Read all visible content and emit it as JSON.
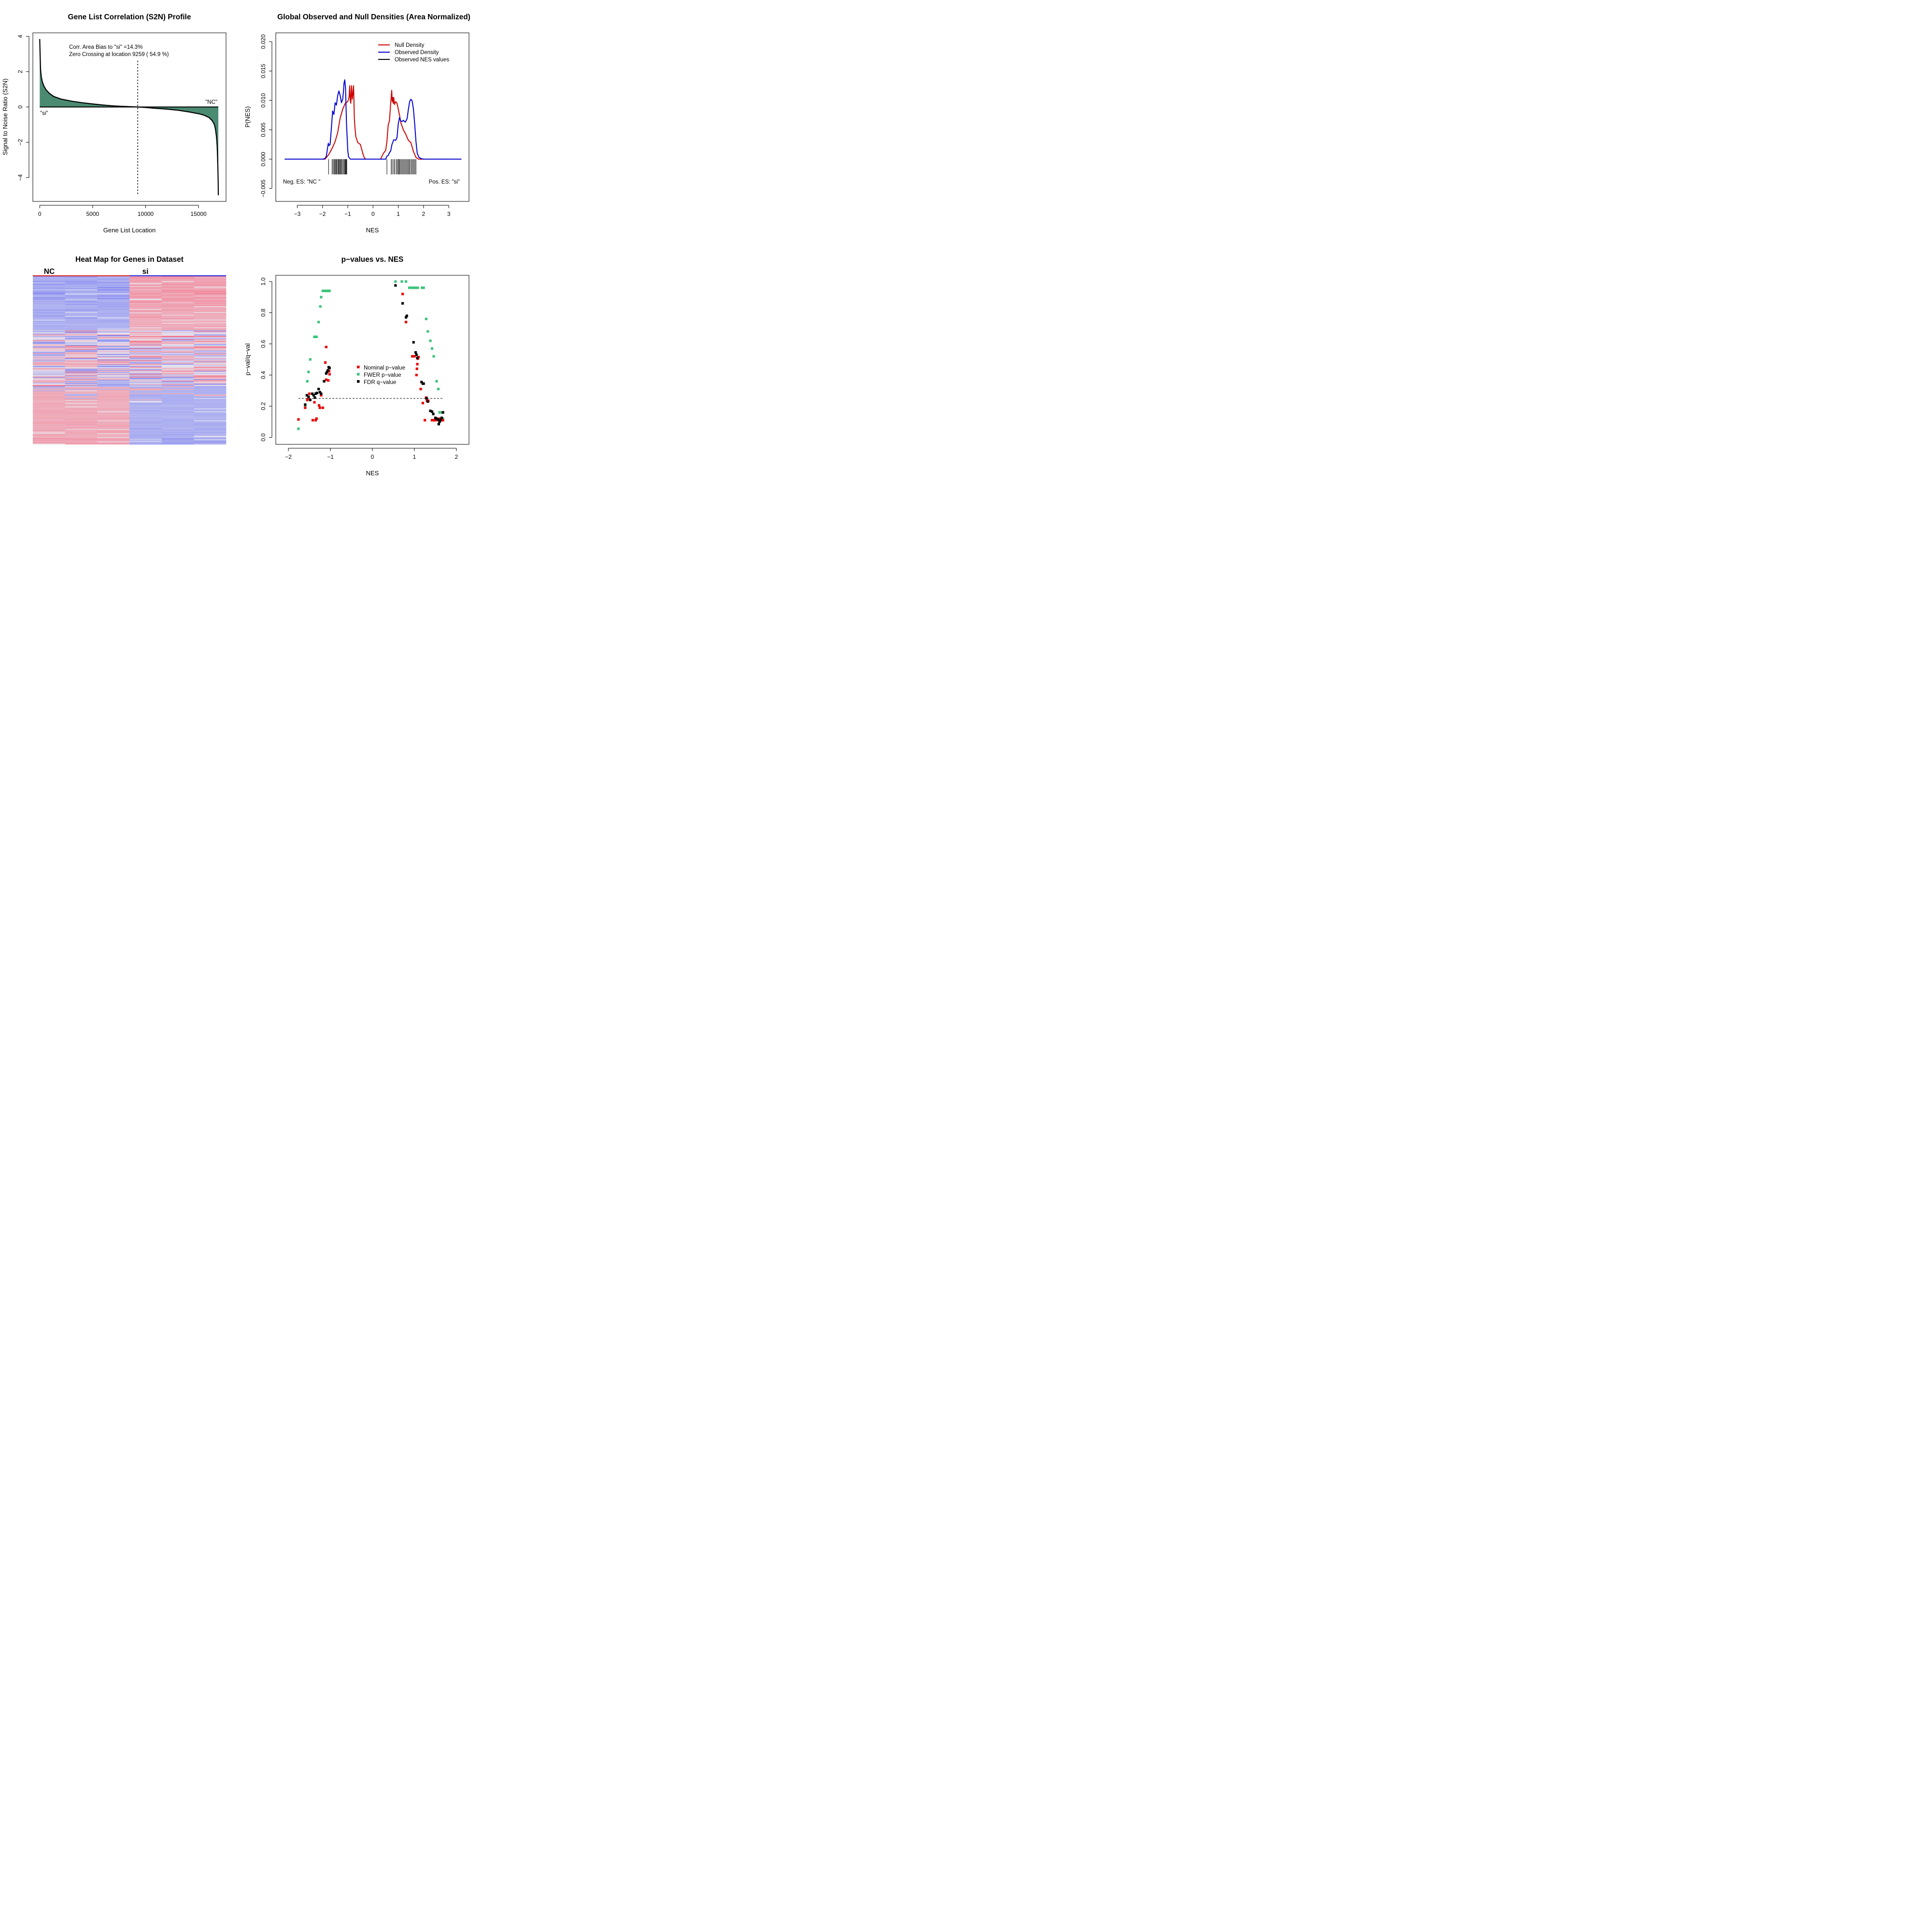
{
  "chart_data": [
    {
      "type": "area",
      "title": "Gene List Correlation (S2N) Profile",
      "xlabel": "Gene List Location",
      "ylabel": "Signal to Noise Ratio (S2N)",
      "xlim": [
        -650,
        17600
      ],
      "ylim": [
        -5.35,
        4.2
      ],
      "xticks": [
        0,
        5000,
        10000,
        15000
      ],
      "xtick_labels": [
        "0",
        "5000",
        "10000",
        "15000"
      ],
      "yticks": [
        -4,
        -2,
        0,
        2,
        4
      ],
      "ytick_labels": [
        "−4",
        "−2",
        "0",
        "2",
        "4"
      ],
      "fill_color": "#4a8b72",
      "x": [
        0,
        30,
        80,
        150,
        250,
        400,
        600,
        900,
        1300,
        2000,
        3000,
        4000,
        5000,
        6000,
        7000,
        8000,
        9259,
        10000,
        11000,
        12000,
        13000,
        14000,
        15000,
        15500,
        16000,
        16300,
        16500,
        16600,
        16700,
        16760,
        16800,
        16830,
        16860,
        16872
      ],
      "y": [
        3.85,
        3.1,
        2.1,
        1.7,
        1.42,
        1.18,
        0.97,
        0.78,
        0.6,
        0.45,
        0.33,
        0.24,
        0.17,
        0.11,
        0.06,
        0.03,
        0.0,
        -0.03,
        -0.08,
        -0.12,
        -0.18,
        -0.27,
        -0.38,
        -0.46,
        -0.6,
        -0.78,
        -1.0,
        -1.25,
        -1.7,
        -2.2,
        -2.85,
        -3.5,
        -4.3,
        -5.0
      ],
      "zero_crossing": 9259,
      "annotations": [
        "Corr. Area Bias to \"si\" =14.3%",
        "Zero Crossing at location  9259  ( 54.9  %)",
        "\"si\"",
        "\"NC\""
      ]
    },
    {
      "type": "line",
      "title": "Global Observed and Null Densities (Area Normalized)",
      "xlabel": "NES",
      "ylabel": "P(NES)",
      "xlim": [
        -3.85,
        3.8
      ],
      "ylim": [
        -0.0072,
        0.0215
      ],
      "xticks": [
        -3,
        -2,
        -1,
        0,
        1,
        2,
        3
      ],
      "xtick_labels": [
        "−3",
        "−2",
        "−1",
        "0",
        "1",
        "2",
        "3"
      ],
      "yticks": [
        -0.005,
        0.0,
        0.005,
        0.01,
        0.015,
        0.02
      ],
      "ytick_labels": [
        "−0.005",
        "0.000",
        "0.005",
        "0.010",
        "0.015",
        "0.020"
      ],
      "legend": [
        {
          "label": "Null Density",
          "color": "#cc0000"
        },
        {
          "label": "Observed Density",
          "color": "#0000cc"
        },
        {
          "label": "Observed NES values",
          "color": "#000000"
        }
      ],
      "legend_position": "top-right",
      "series": [
        {
          "name": "Null Density",
          "color": "#cc0000",
          "x": [
            -3.5,
            -1.9,
            -1.75,
            -1.6,
            -1.5,
            -1.4,
            -1.3,
            -1.2,
            -1.1,
            -1.0,
            -0.95,
            -0.92,
            -0.9,
            -0.88,
            -0.85,
            -0.82,
            -0.8,
            -0.77,
            -0.74,
            -0.72,
            -0.68,
            -0.6,
            -0.5,
            -0.4,
            -0.35,
            -0.3,
            0.3,
            0.4,
            0.5,
            0.55,
            0.6,
            0.65,
            0.7,
            0.74,
            0.76,
            0.78,
            0.8,
            0.82,
            0.85,
            0.9,
            0.95,
            1.0,
            1.05,
            1.1,
            1.2,
            1.3,
            1.4,
            1.5,
            1.6,
            1.7,
            1.8,
            3.5
          ],
          "y": [
            0.0,
            0.0,
            0.0008,
            0.002,
            0.003,
            0.0045,
            0.007,
            0.0085,
            0.0095,
            0.0098,
            0.0105,
            0.0125,
            0.01,
            0.0095,
            0.0125,
            0.0102,
            0.011,
            0.0125,
            0.007,
            0.0056,
            0.0038,
            0.0028,
            0.0025,
            0.0009,
            0.0003,
            0.0,
            0.0,
            0.0009,
            0.0015,
            0.003,
            0.0058,
            0.0065,
            0.0095,
            0.0117,
            0.0098,
            0.0105,
            0.0095,
            0.0105,
            0.0093,
            0.0098,
            0.0095,
            0.0085,
            0.0075,
            0.0062,
            0.005,
            0.0042,
            0.0032,
            0.0028,
            0.0013,
            0.0003,
            0.0,
            0.0
          ]
        },
        {
          "name": "Observed Density",
          "color": "#0000cc",
          "x": [
            -3.5,
            -2.0,
            -1.9,
            -1.85,
            -1.8,
            -1.77,
            -1.74,
            -1.7,
            -1.65,
            -1.6,
            -1.55,
            -1.5,
            -1.45,
            -1.4,
            -1.35,
            -1.3,
            -1.25,
            -1.2,
            -1.17,
            -1.15,
            -1.12,
            -1.09,
            -1.05,
            -1.0,
            -0.97,
            -0.9,
            0.2,
            0.5,
            0.55,
            0.6,
            0.65,
            0.7,
            0.75,
            0.82,
            0.9,
            0.95,
            1.0,
            1.05,
            1.1,
            1.15,
            1.2,
            1.28,
            1.35,
            1.4,
            1.45,
            1.5,
            1.55,
            1.6,
            1.65,
            1.7,
            1.75,
            1.82,
            1.9,
            2.0,
            3.5
          ],
          "y": [
            0.0,
            0.0,
            0.0001,
            0.0005,
            0.0019,
            0.0027,
            0.0023,
            0.0025,
            0.0052,
            0.0082,
            0.0076,
            0.0096,
            0.0092,
            0.0108,
            0.0116,
            0.0108,
            0.0096,
            0.0102,
            0.0116,
            0.0129,
            0.0135,
            0.0122,
            0.006,
            0.0015,
            0.0004,
            0.0,
            0.0,
            0.0,
            0.0005,
            0.0006,
            0.0011,
            0.0014,
            0.0025,
            0.0033,
            0.0032,
            0.0037,
            0.006,
            0.0071,
            0.0065,
            0.0064,
            0.0066,
            0.0063,
            0.0069,
            0.0085,
            0.0098,
            0.0102,
            0.0099,
            0.0085,
            0.006,
            0.003,
            0.001,
            0.0003,
            0.0001,
            0.0,
            0.0
          ]
        }
      ],
      "observed_nes": [
        -1.76,
        -1.62,
        -1.58,
        -1.54,
        -1.51,
        -1.48,
        -1.45,
        -1.42,
        -1.38,
        -1.36,
        -1.33,
        -1.3,
        -1.27,
        -1.24,
        -1.2,
        -1.16,
        -1.13,
        -1.1,
        -1.08,
        -1.06,
        -1.04,
        0.55,
        0.72,
        0.76,
        0.82,
        0.86,
        0.92,
        0.96,
        1.0,
        1.03,
        1.06,
        1.1,
        1.14,
        1.18,
        1.22,
        1.26,
        1.3,
        1.34,
        1.38,
        1.42,
        1.45,
        1.5,
        1.54,
        1.58,
        1.62,
        1.66,
        1.7
      ],
      "annotations": [
        "Neg. ES: \"NC \"",
        "Pos. ES: \"si\""
      ]
    },
    {
      "type": "heatmap",
      "title": "Heat Map for Genes in Dataset",
      "groups": [
        {
          "label": "NC",
          "color": "#dd2222",
          "columns": 3
        },
        {
          "label": "si",
          "color": "#2222dd",
          "columns": 3
        }
      ],
      "columns": 6,
      "rows": 240,
      "colors": {
        "high": "#f47388",
        "low": "#7a7ff0",
        "mid": "#e8e8f0"
      }
    },
    {
      "type": "scatter",
      "title": "p−values vs. NES",
      "xlabel": "NES",
      "ylabel": "p−val/q−val",
      "xlim": [
        -2.3,
        2.3
      ],
      "ylim": [
        -0.045,
        1.04
      ],
      "xticks": [
        -2,
        -1,
        0,
        1,
        2
      ],
      "xtick_labels": [
        "−2",
        "−1",
        "0",
        "1",
        "2"
      ],
      "yticks": [
        0.0,
        0.2,
        0.4,
        0.6,
        0.8,
        1.0
      ],
      "ytick_labels": [
        "0.0",
        "0.2",
        "0.4",
        "0.6",
        "0.8",
        "1.0"
      ],
      "threshold": 0.25,
      "legend": [
        {
          "label": "Nominal p−value",
          "color": "#ee0000"
        },
        {
          "label": "FWER p−value",
          "color": "#3cc47a"
        },
        {
          "label": "FDR q−value",
          "color": "#000000"
        }
      ],
      "legend_position": "center",
      "series": [
        {
          "name": "Nominal p−value",
          "color": "#ee0000",
          "x": [
            -1.76,
            -1.6,
            -1.55,
            -1.52,
            -1.5,
            -1.42,
            -1.38,
            -1.35,
            -1.33,
            -1.27,
            -1.25,
            -1.22,
            -1.18,
            -1.12,
            -1.1,
            -1.1,
            -1.05,
            -1.03,
            -1.02,
            0.72,
            0.8,
            0.95,
            1.0,
            1.05,
            1.06,
            1.07,
            1.08,
            1.1,
            1.15,
            1.2,
            1.25,
            1.28,
            1.3,
            1.33,
            1.42,
            1.46,
            1.5,
            1.53,
            1.57,
            1.6,
            1.62,
            1.66,
            1.68
          ],
          "y": [
            0.115,
            0.19,
            0.24,
            0.25,
            0.28,
            0.11,
            0.225,
            0.11,
            0.12,
            0.205,
            0.19,
            0.27,
            0.19,
            0.48,
            0.58,
            0.37,
            0.365,
            0.425,
            0.405,
            0.92,
            0.74,
            0.52,
            0.52,
            0.4,
            0.44,
            0.47,
            0.505,
            0.515,
            0.31,
            0.22,
            0.11,
            0.255,
            0.235,
            0.235,
            0.11,
            0.11,
            0.11,
            0.115,
            0.11,
            0.12,
            0.11,
            0.11,
            0.11
          ]
        },
        {
          "name": "FWER p−value",
          "color": "#3cc47a",
          "x": [
            -1.76,
            -1.6,
            -1.55,
            -1.52,
            -1.48,
            -1.38,
            -1.35,
            -1.33,
            -1.28,
            -1.24,
            -1.22,
            -1.18,
            -1.15,
            -1.12,
            -1.1,
            -1.08,
            -1.06,
            -1.04,
            -1.02,
            0.55,
            0.7,
            0.8,
            0.88,
            0.92,
            0.98,
            1.0,
            1.05,
            1.08,
            1.18,
            1.22,
            1.28,
            1.32,
            1.38,
            1.42,
            1.46,
            1.53,
            1.57,
            1.6,
            1.66,
            1.68
          ],
          "y": [
            0.055,
            0.2,
            0.36,
            0.42,
            0.5,
            0.645,
            0.645,
            0.645,
            0.74,
            0.84,
            0.9,
            0.94,
            0.94,
            0.94,
            0.94,
            0.94,
            0.94,
            0.94,
            0.94,
            1.0,
            1.0,
            1.0,
            0.96,
            0.96,
            0.96,
            0.96,
            0.96,
            0.96,
            0.96,
            0.96,
            0.76,
            0.68,
            0.62,
            0.57,
            0.52,
            0.36,
            0.31,
            0.16,
            0.16,
            0.12
          ]
        },
        {
          "name": "FDR q−value",
          "color": "#000000",
          "x": [
            -1.6,
            -1.56,
            -1.52,
            -1.48,
            -1.43,
            -1.4,
            -1.37,
            -1.35,
            -1.32,
            -1.28,
            -1.25,
            -1.22,
            -1.15,
            -1.1,
            -1.08,
            -1.06,
            -1.04,
            -1.02,
            0.55,
            0.72,
            0.8,
            0.82,
            0.98,
            1.03,
            1.05,
            1.07,
            1.17,
            1.2,
            1.22,
            1.29,
            1.32,
            1.38,
            1.42,
            1.45,
            1.5,
            1.53,
            1.56,
            1.58,
            1.6,
            1.62,
            1.65,
            1.68
          ],
          "y": [
            0.21,
            0.27,
            0.26,
            0.24,
            0.28,
            0.27,
            0.255,
            0.28,
            0.285,
            0.31,
            0.29,
            0.28,
            0.36,
            0.41,
            0.42,
            0.43,
            0.45,
            0.445,
            0.975,
            0.86,
            0.77,
            0.78,
            0.61,
            0.545,
            0.53,
            0.51,
            0.355,
            0.345,
            0.345,
            0.25,
            0.23,
            0.17,
            0.165,
            0.15,
            0.125,
            0.12,
            0.115,
            0.085,
            0.1,
            0.11,
            0.125,
            0.16
          ]
        }
      ]
    }
  ]
}
